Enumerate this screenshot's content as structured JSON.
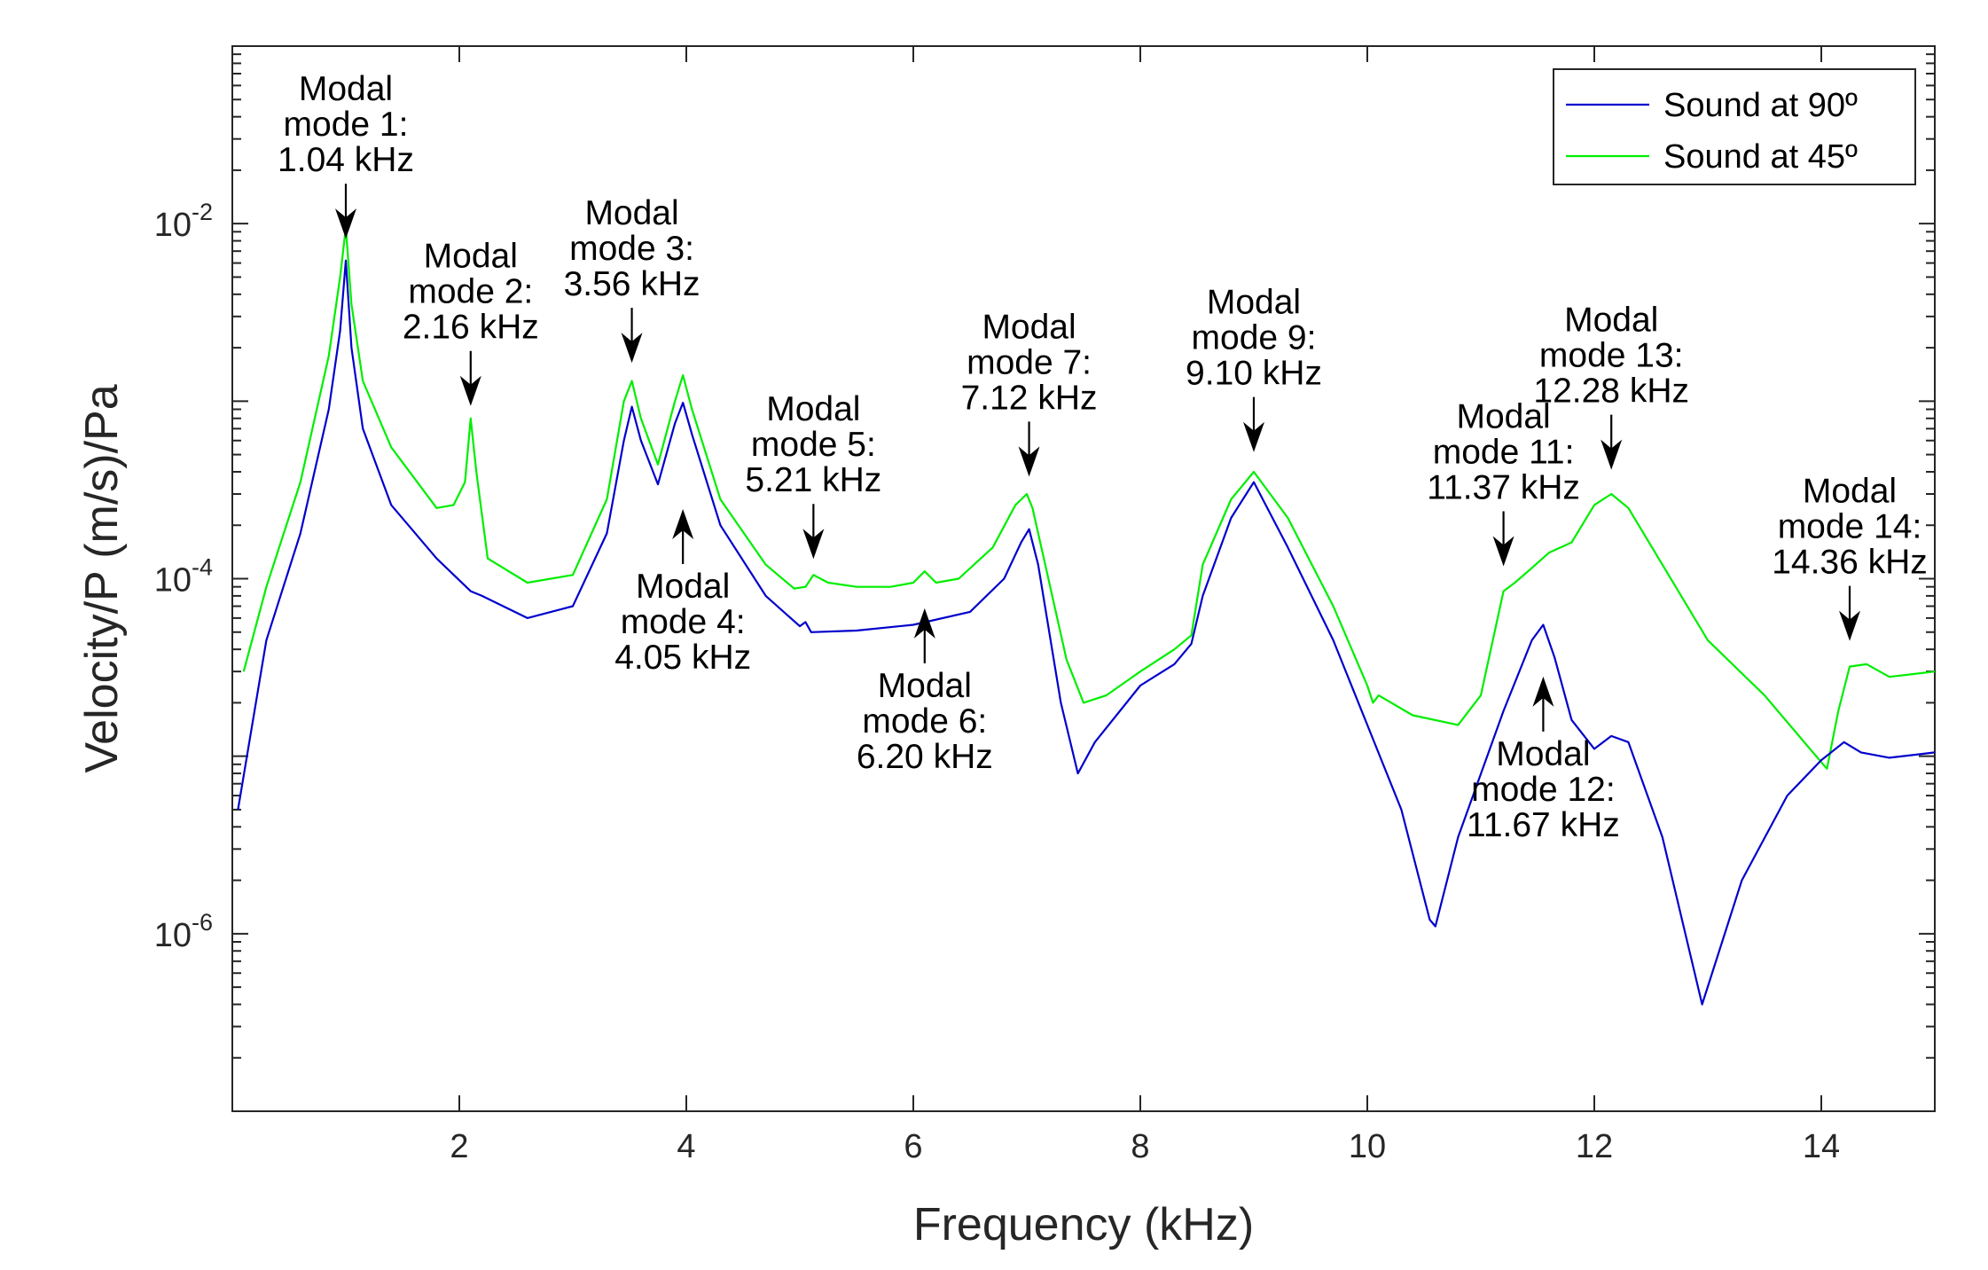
{
  "chart_data": {
    "type": "line",
    "title": "",
    "xlabel": "Frequency (kHz)",
    "ylabel": "Velocity/P (m/s)/Pa",
    "yscale": "log",
    "xlim": [
      0,
      15
    ],
    "ylim": [
      1e-07,
      0.1
    ],
    "grid": false,
    "legend_position": "top-right",
    "x_ticks": [
      2,
      4,
      6,
      8,
      10,
      12,
      14
    ],
    "x_tick_labels": [
      "2",
      "4",
      "6",
      "8",
      "10",
      "12",
      "14"
    ],
    "y_ticks": [
      1e-06,
      0.0001,
      0.01
    ],
    "y_tick_labels": [
      {
        "base": "10",
        "exp": "-6"
      },
      {
        "base": "10",
        "exp": "-4"
      },
      {
        "base": "10",
        "exp": "-2"
      }
    ],
    "series": [
      {
        "name": "Sound at 90º",
        "color": "#0000cc",
        "x": [
          0.05,
          0.3,
          0.6,
          0.85,
          0.95,
          1.0,
          1.05,
          1.15,
          1.4,
          1.8,
          2.1,
          2.2,
          2.6,
          3.0,
          3.3,
          3.45,
          3.52,
          3.6,
          3.75,
          3.9,
          3.97,
          4.05,
          4.3,
          4.7,
          5.0,
          5.05,
          5.1,
          5.5,
          6.0,
          6.5,
          6.8,
          6.95,
          7.02,
          7.1,
          7.3,
          7.45,
          7.6,
          8.0,
          8.3,
          8.45,
          8.55,
          8.8,
          9.0,
          9.3,
          9.7,
          10.0,
          10.3,
          10.55,
          10.6,
          10.8,
          11.2,
          11.45,
          11.55,
          11.65,
          11.8,
          12.0,
          12.15,
          12.3,
          12.6,
          12.95,
          13.3,
          13.7,
          14.0,
          14.2,
          14.35,
          14.6,
          15.0
        ],
        "values": [
          5e-06,
          4.5e-05,
          0.00018,
          0.0009,
          0.0025,
          0.0062,
          0.002,
          0.0007,
          0.00026,
          0.00013,
          8.5e-05,
          8e-05,
          6e-05,
          7e-05,
          0.00018,
          0.0006,
          0.00093,
          0.0006,
          0.00034,
          0.00075,
          0.00098,
          0.00065,
          0.0002,
          8e-05,
          5.4e-05,
          5.7e-05,
          5e-05,
          5.1e-05,
          5.5e-05,
          6.5e-05,
          0.0001,
          0.00016,
          0.00019,
          0.00012,
          2e-05,
          8e-06,
          1.2e-05,
          2.5e-05,
          3.3e-05,
          4.3e-05,
          8e-05,
          0.00022,
          0.00035,
          0.00015,
          4.5e-05,
          1.5e-05,
          5e-06,
          1.2e-06,
          1.1e-06,
          3.5e-06,
          1.8e-05,
          4.5e-05,
          5.5e-05,
          3.6e-05,
          1.6e-05,
          1.1e-05,
          1.3e-05,
          1.2e-05,
          3.5e-06,
          4e-07,
          2e-06,
          6e-06,
          9.5e-06,
          1.2e-05,
          1.05e-05,
          9.8e-06,
          1.05e-05
        ]
      },
      {
        "name": "Sound at 45º",
        "color": "#00ee00",
        "x": [
          0.1,
          0.3,
          0.6,
          0.85,
          0.95,
          1.0,
          1.05,
          1.15,
          1.4,
          1.8,
          1.95,
          2.05,
          2.1,
          2.15,
          2.25,
          2.6,
          3.0,
          3.3,
          3.45,
          3.52,
          3.6,
          3.75,
          3.9,
          3.97,
          4.05,
          4.3,
          4.7,
          4.95,
          5.05,
          5.12,
          5.25,
          5.5,
          5.8,
          6.0,
          6.1,
          6.2,
          6.4,
          6.7,
          6.9,
          7.0,
          7.05,
          7.15,
          7.35,
          7.5,
          7.7,
          8.0,
          8.3,
          8.45,
          8.55,
          8.8,
          9.0,
          9.3,
          9.7,
          10.0,
          10.05,
          10.1,
          10.4,
          10.8,
          11.0,
          11.2,
          11.3,
          11.45,
          11.6,
          11.8,
          12.0,
          12.15,
          12.3,
          12.6,
          13.0,
          13.5,
          13.9,
          14.05,
          14.15,
          14.25,
          14.4,
          14.6,
          15.0
        ],
        "values": [
          3e-05,
          9e-05,
          0.00035,
          0.0018,
          0.005,
          0.0095,
          0.0035,
          0.0013,
          0.00055,
          0.00025,
          0.00026,
          0.00035,
          0.0008,
          0.0004,
          0.00013,
          9.5e-05,
          0.000105,
          0.00028,
          0.001,
          0.0013,
          0.0008,
          0.00044,
          0.001,
          0.0014,
          0.0009,
          0.00028,
          0.00012,
          8.8e-05,
          9e-05,
          0.000105,
          9.5e-05,
          9e-05,
          9e-05,
          9.5e-05,
          0.00011,
          9.5e-05,
          0.0001,
          0.00015,
          0.00026,
          0.0003,
          0.00025,
          0.00013,
          3.5e-05,
          2e-05,
          2.2e-05,
          3e-05,
          4e-05,
          4.8e-05,
          0.00012,
          0.00028,
          0.0004,
          0.00022,
          7e-05,
          2.5e-05,
          2e-05,
          2.2e-05,
          1.7e-05,
          1.5e-05,
          2.2e-05,
          8.5e-05,
          9.5e-05,
          0.000115,
          0.00014,
          0.00016,
          0.00026,
          0.0003,
          0.00025,
          0.00012,
          4.5e-05,
          2.2e-05,
          1.1e-05,
          8.5e-06,
          1.8e-05,
          3.2e-05,
          3.3e-05,
          2.8e-05,
          3e-05
        ]
      }
    ],
    "annotations": [
      {
        "label": "Modal mode 1: 1.04 kHz",
        "lines": [
          "Modal",
          "mode 1:",
          "1.04 kHz"
        ],
        "x": 1.0,
        "y": 0.007,
        "side": "above"
      },
      {
        "label": "Modal mode 2: 2.16 kHz",
        "lines": [
          "Modal",
          "mode 2:",
          "2.16 kHz"
        ],
        "x": 2.1,
        "y": 0.0008,
        "side": "above"
      },
      {
        "label": "Modal mode 3: 3.56 kHz",
        "lines": [
          "Modal",
          "mode 3:",
          "3.56 kHz"
        ],
        "x": 3.52,
        "y": 0.0014,
        "side": "above"
      },
      {
        "label": "Modal mode 4: 4.05 kHz",
        "lines": [
          "Modal",
          "mode 4:",
          "4.05 kHz"
        ],
        "x": 3.97,
        "y": 0.00029,
        "side": "below"
      },
      {
        "label": "Modal mode 5: 5.21 kHz",
        "lines": [
          "Modal",
          "mode 5:",
          "5.21 kHz"
        ],
        "x": 5.12,
        "y": 0.00011,
        "side": "above"
      },
      {
        "label": "Modal mode 6: 6.20 kHz",
        "lines": [
          "Modal",
          "mode 6:",
          "6.20 kHz"
        ],
        "x": 6.1,
        "y": 8e-05,
        "side": "below"
      },
      {
        "label": "Modal mode 7: 7.12 kHz",
        "lines": [
          "Modal",
          "mode 7:",
          "7.12 kHz"
        ],
        "x": 7.02,
        "y": 0.00032,
        "side": "above"
      },
      {
        "label": "Modal mode 9: 9.10 kHz",
        "lines": [
          "Modal",
          "mode 9:",
          "9.10 kHz"
        ],
        "x": 9.0,
        "y": 0.00044,
        "side": "above"
      },
      {
        "label": "Modal mode 11: 11.37 kHz",
        "lines": [
          "Modal",
          "mode 11:",
          "11.37 kHz"
        ],
        "x": 11.2,
        "y": 0.0001,
        "side": "above"
      },
      {
        "label": "Modal mode 12: 11.67 kHz",
        "lines": [
          "Modal",
          "mode 12:",
          "11.67 kHz"
        ],
        "x": 11.55,
        "y": 3.3e-05,
        "side": "below"
      },
      {
        "label": "Modal mode 13: 12.28 kHz",
        "lines": [
          "Modal",
          "mode 13:",
          "12.28 kHz"
        ],
        "x": 12.15,
        "y": 0.00035,
        "side": "above"
      },
      {
        "label": "Modal mode 14: 14.36 kHz",
        "lines": [
          "Modal",
          "mode 14:",
          "14.36 kHz"
        ],
        "x": 14.25,
        "y": 3.8e-05,
        "side": "above"
      }
    ]
  }
}
